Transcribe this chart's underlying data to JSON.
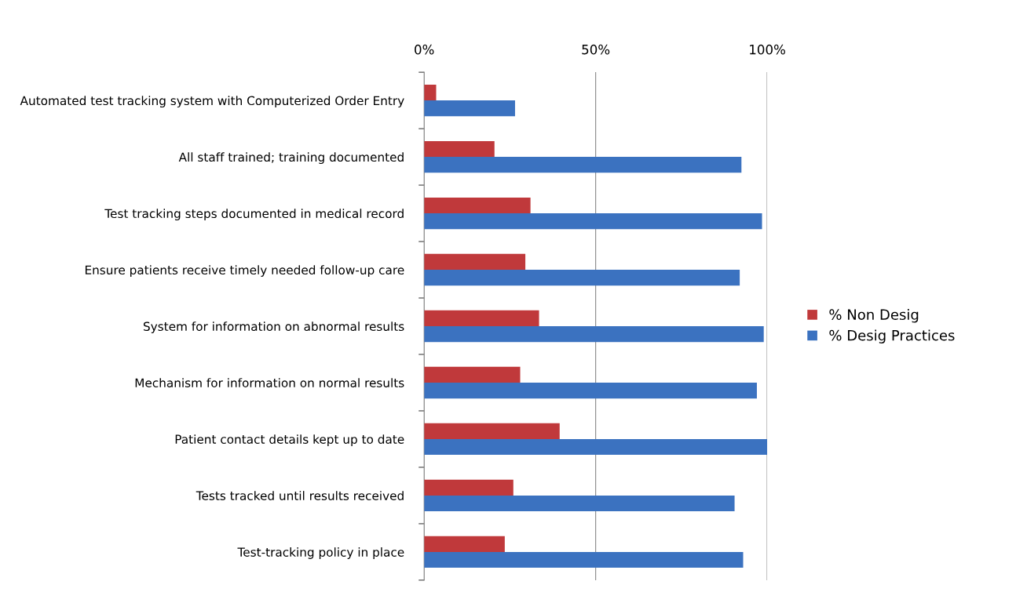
{
  "chart_data": {
    "type": "bar",
    "orientation": "horizontal",
    "categories": [
      "Automated test tracking system with Computerized Order Entry",
      "All staff trained; training documented",
      "Test tracking steps documented in medical record",
      "Ensure patients receive timely needed follow-up care",
      "System for information on abnormal results",
      "Mechanism for information on normal results",
      "Patient contact details kept up to date",
      "Tests tracked until results received",
      "Test-tracking policy in place"
    ],
    "series": [
      {
        "name": "% Non Desig",
        "color": "#c0393b",
        "values": [
          3.5,
          20.5,
          31,
          29.5,
          33.5,
          28,
          39.5,
          26,
          23.5
        ]
      },
      {
        "name": "% Desig Practices",
        "color": "#3b72c0",
        "values": [
          26.5,
          92.5,
          98.5,
          92,
          99,
          97,
          100,
          90.5,
          93
        ]
      }
    ],
    "xlim": [
      0,
      100
    ],
    "xticks": [
      {
        "value": 0,
        "label": "0%"
      },
      {
        "value": 50,
        "label": "50%"
      },
      {
        "value": 100,
        "label": "100%"
      }
    ],
    "grid": "x",
    "legend": "right"
  }
}
